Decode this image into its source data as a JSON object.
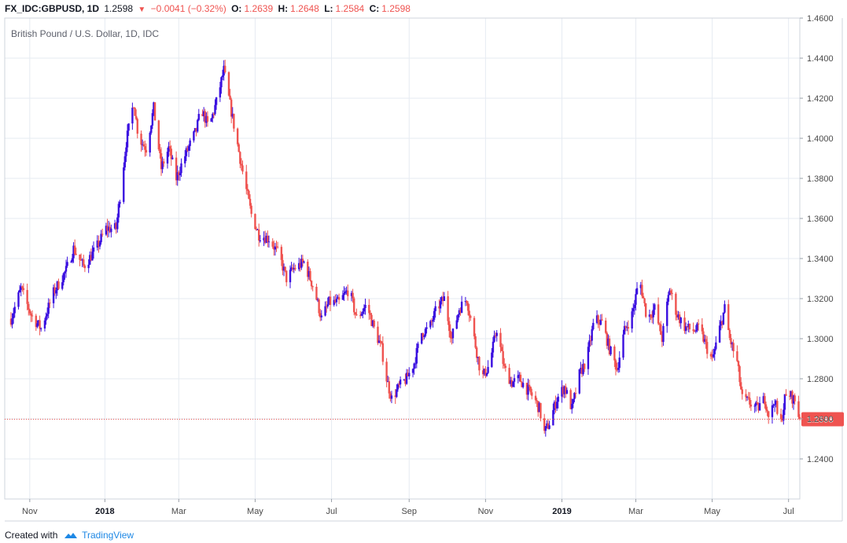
{
  "header": {
    "symbol": "FX_IDC:GBPUSD, 1D",
    "last": "1.2598",
    "change": "−0.0041 (−0.32%)",
    "o_label": "O:",
    "o_value": "1.2639",
    "h_label": "H:",
    "h_value": "1.2648",
    "l_label": "L:",
    "l_value": "1.2584",
    "c_label": "C:",
    "c_value": "1.2598"
  },
  "footer": {
    "created_with": "Created with",
    "brand": "TradingView"
  },
  "colors": {
    "up": "#3a0fe0",
    "down": "#ef5350",
    "grid": "#e6ebf2",
    "axis": "#cfd4dc",
    "last_price": "#ef5350"
  },
  "chart_data": {
    "type": "candlestick",
    "title": "British Pound / U.S. Dollar, 1D, IDC",
    "current_price": 1.2598,
    "current_price_label": "1.2598",
    "ylim": [
      1.22,
      1.46
    ],
    "y_ticks": [
      1.24,
      1.26,
      1.28,
      1.3,
      1.32,
      1.34,
      1.36,
      1.38,
      1.4,
      1.42,
      1.44,
      1.46
    ],
    "y_tick_labels": [
      "1.2400",
      "1.2600",
      "1.2800",
      "1.3000",
      "1.3200",
      "1.3400",
      "1.3600",
      "1.3800",
      "1.4000",
      "1.4200",
      "1.4400",
      "1.4600"
    ],
    "x_ticks": [
      {
        "label": "Nov",
        "day": 15
      },
      {
        "label": "2018",
        "day": 75
      },
      {
        "label": "Mar",
        "day": 134
      },
      {
        "label": "May",
        "day": 195
      },
      {
        "label": "Jul",
        "day": 256
      },
      {
        "label": "Sep",
        "day": 318
      },
      {
        "label": "Nov",
        "day": 379
      },
      {
        "label": "2019",
        "day": 440
      },
      {
        "label": "Mar",
        "day": 499
      },
      {
        "label": "May",
        "day": 560
      },
      {
        "label": "Jul",
        "day": 621
      }
    ],
    "x_range_days": [
      -5,
      630
    ],
    "x_origin_date": "2017-10-17",
    "close_path": [
      [
        0,
        1.31
      ],
      [
        8,
        1.325
      ],
      [
        16,
        1.312
      ],
      [
        24,
        1.305
      ],
      [
        34,
        1.323
      ],
      [
        44,
        1.334
      ],
      [
        50,
        1.345
      ],
      [
        58,
        1.336
      ],
      [
        68,
        1.345
      ],
      [
        76,
        1.355
      ],
      [
        84,
        1.355
      ],
      [
        92,
        1.398
      ],
      [
        98,
        1.418
      ],
      [
        102,
        1.4
      ],
      [
        108,
        1.395
      ],
      [
        114,
        1.415
      ],
      [
        120,
        1.385
      ],
      [
        126,
        1.395
      ],
      [
        132,
        1.38
      ],
      [
        138,
        1.39
      ],
      [
        148,
        1.404
      ],
      [
        152,
        1.415
      ],
      [
        158,
        1.405
      ],
      [
        164,
        1.418
      ],
      [
        170,
        1.434
      ],
      [
        174,
        1.42
      ],
      [
        180,
        1.4
      ],
      [
        186,
        1.38
      ],
      [
        192,
        1.362
      ],
      [
        198,
        1.352
      ],
      [
        206,
        1.35
      ],
      [
        214,
        1.342
      ],
      [
        220,
        1.33
      ],
      [
        226,
        1.335
      ],
      [
        234,
        1.338
      ],
      [
        242,
        1.325
      ],
      [
        248,
        1.31
      ],
      [
        254,
        1.318
      ],
      [
        262,
        1.318
      ],
      [
        270,
        1.325
      ],
      [
        276,
        1.31
      ],
      [
        284,
        1.317
      ],
      [
        290,
        1.305
      ],
      [
        296,
        1.295
      ],
      [
        300,
        1.28
      ],
      [
        304,
        1.27
      ],
      [
        310,
        1.276
      ],
      [
        316,
        1.28
      ],
      [
        322,
        1.288
      ],
      [
        328,
        1.303
      ],
      [
        334,
        1.305
      ],
      [
        340,
        1.315
      ],
      [
        346,
        1.32
      ],
      [
        352,
        1.3
      ],
      [
        358,
        1.315
      ],
      [
        364,
        1.32
      ],
      [
        370,
        1.3
      ],
      [
        376,
        1.28
      ],
      [
        382,
        1.287
      ],
      [
        388,
        1.305
      ],
      [
        394,
        1.285
      ],
      [
        400,
        1.278
      ],
      [
        406,
        1.28
      ],
      [
        412,
        1.275
      ],
      [
        418,
        1.27
      ],
      [
        422,
        1.265
      ],
      [
        426,
        1.253
      ],
      [
        430,
        1.258
      ],
      [
        436,
        1.27
      ],
      [
        442,
        1.276
      ],
      [
        448,
        1.265
      ],
      [
        454,
        1.282
      ],
      [
        460,
        1.29
      ],
      [
        466,
        1.31
      ],
      [
        472,
        1.308
      ],
      [
        478,
        1.295
      ],
      [
        484,
        1.285
      ],
      [
        490,
        1.304
      ],
      [
        496,
        1.312
      ],
      [
        502,
        1.33
      ],
      [
        508,
        1.31
      ],
      [
        514,
        1.315
      ],
      [
        520,
        1.3
      ],
      [
        526,
        1.325
      ],
      [
        532,
        1.312
      ],
      [
        538,
        1.306
      ],
      [
        544,
        1.304
      ],
      [
        550,
        1.305
      ],
      [
        556,
        1.295
      ],
      [
        560,
        1.289
      ],
      [
        566,
        1.305
      ],
      [
        570,
        1.315
      ],
      [
        574,
        1.3
      ],
      [
        580,
        1.288
      ],
      [
        584,
        1.27
      ],
      [
        590,
        1.268
      ],
      [
        596,
        1.265
      ],
      [
        602,
        1.27
      ],
      [
        606,
        1.26
      ],
      [
        610,
        1.27
      ],
      [
        614,
        1.254
      ],
      [
        618,
        1.27
      ],
      [
        622,
        1.272
      ],
      [
        626,
        1.269
      ],
      [
        630,
        1.2598
      ]
    ]
  }
}
